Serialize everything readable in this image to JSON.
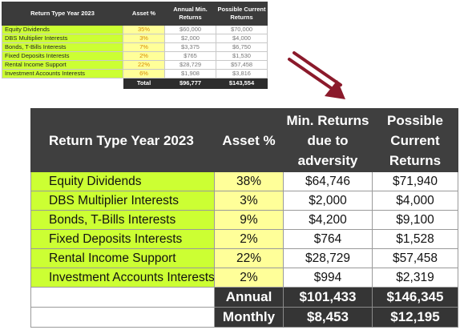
{
  "small_table": {
    "headers": [
      "Return Type Year 2023",
      "Asset %",
      "Annual Min. Returns",
      "Possible Current Returns"
    ],
    "rows": [
      {
        "type": "Equity Dividends",
        "asset": "35%",
        "min": "$60,000",
        "current": "$70,000"
      },
      {
        "type": "DBS Multiplier Interests",
        "asset": "3%",
        "min": "$2,000",
        "current": "$4,000"
      },
      {
        "type": "Bonds, T-Bills Interests",
        "asset": "7%",
        "min": "$3,375",
        "current": "$6,750"
      },
      {
        "type": "Fixed Deposits Interests",
        "asset": "2%",
        "min": "$765",
        "current": "$1,530"
      },
      {
        "type": "Rental Income Support",
        "asset": "22%",
        "min": "$28,729",
        "current": "$57,458"
      },
      {
        "type": "Investment Accounts Interests",
        "asset": "6%",
        "min": "$1,908",
        "current": "$3,816"
      }
    ],
    "total": {
      "label": "Total",
      "min": "$96,777",
      "current": "$143,554"
    }
  },
  "large_table": {
    "headers": [
      "Return Type Year 2023",
      "Asset %",
      "Min. Returns due to adversity",
      "Possible Current Returns"
    ],
    "rows": [
      {
        "type": "Equity Dividends",
        "asset": "38%",
        "min": "$64,746",
        "current": "$71,940"
      },
      {
        "type": "DBS Multiplier Interests",
        "asset": "3%",
        "min": "$2,000",
        "current": "$4,000"
      },
      {
        "type": "Bonds, T-Bills Interests",
        "asset": "9%",
        "min": "$4,200",
        "current": "$9,100"
      },
      {
        "type": "Fixed Deposits Interests",
        "asset": "2%",
        "min": "$764",
        "current": "$1,528"
      },
      {
        "type": "Rental Income Support",
        "asset": "22%",
        "min": "$28,729",
        "current": "$57,458"
      },
      {
        "type": "Investment Accounts Interests",
        "asset": "2%",
        "min": "$994",
        "current": "$2,319"
      }
    ],
    "annual": {
      "label": "Annual",
      "min": "$101,433",
      "current": "$146,345"
    },
    "monthly": {
      "label": "Monthly",
      "min": "$8,453",
      "current": "$12,195"
    }
  },
  "colors": {
    "type_cell": "#ccff33",
    "asset_cell": "#ffff99",
    "header": "#3f3f3f",
    "arrow": "#8b1a2b"
  },
  "arrow_icon": "arrow-down-right-icon"
}
